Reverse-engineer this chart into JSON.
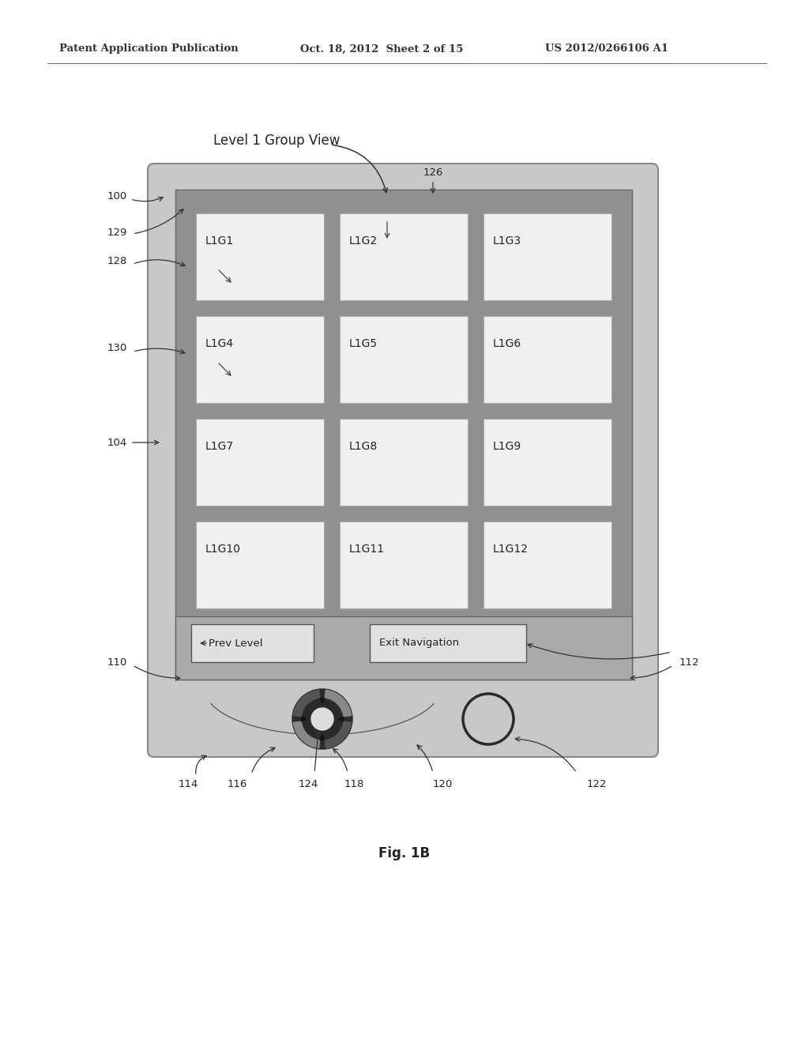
{
  "header_left": "Patent Application Publication",
  "header_mid": "Oct. 18, 2012  Sheet 2 of 15",
  "header_right": "US 2012/0266106 A1",
  "title_label": "Level 1 Group View",
  "fig_label": "Fig. 1B",
  "grid_labels": [
    "L1G1",
    "L1G2",
    "L1G3",
    "L1G4",
    "L1G5",
    "L1G6",
    "L1G7",
    "L1G8",
    "L1G9",
    "L1G10",
    "L1G11",
    "L1G12"
  ],
  "btn_prev": "Prev Level",
  "btn_exit": "Exit Navigation",
  "bg_color": "#ffffff",
  "device_outer_color": "#c8c8c8",
  "device_inner_color": "#b0b0b0",
  "screen_grid_color": "#909090",
  "cell_color": "#f0f0f0",
  "btn_color": "#e0e0e0",
  "text_color": "#222222",
  "header_color": "#333333"
}
